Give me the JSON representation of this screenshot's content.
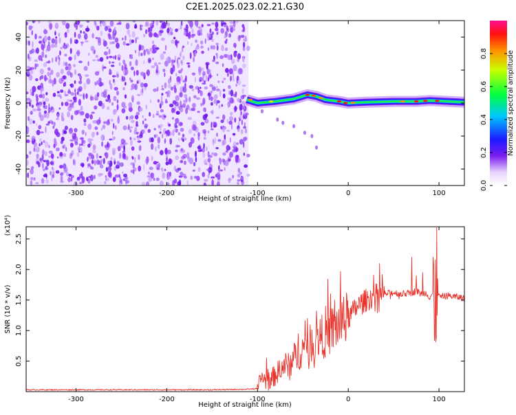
{
  "title": "C2E1.2025.023.02.21.G30",
  "colorbar": {
    "label": "Normalized spectral amplitude",
    "ticks": [
      "0.0",
      "0.2",
      "0.4",
      "0.6",
      "0.8"
    ],
    "range": [
      0,
      1
    ]
  },
  "chart_data": [
    {
      "type": "heatmap",
      "xlabel": "Height of straight line (km)",
      "ylabel": "Frequency (Hz)",
      "xlim": [
        -355,
        128
      ],
      "ylim": [
        -50,
        50
      ],
      "x_ticks": [
        "-300",
        "-200",
        "-100",
        "0",
        "100"
      ],
      "y_ticks": [
        "-40",
        "-20",
        "0",
        "20",
        "40"
      ],
      "regions": [
        {
          "kind": "noise",
          "x_range": [
            -355,
            -110
          ],
          "y_range": [
            -50,
            50
          ],
          "amplitude": 0.1
        },
        {
          "kind": "ridge",
          "x_range": [
            -112,
            128
          ],
          "amplitude_peak": 1.0
        }
      ],
      "ridge_center": [
        [
          -112,
          2
        ],
        [
          -100,
          0
        ],
        [
          -80,
          1
        ],
        [
          -60,
          2.5
        ],
        [
          -45,
          5
        ],
        [
          -35,
          4
        ],
        [
          -25,
          2
        ],
        [
          -10,
          1
        ],
        [
          0,
          0
        ],
        [
          20,
          0.5
        ],
        [
          50,
          1
        ],
        [
          75,
          1
        ],
        [
          90,
          1.5
        ],
        [
          110,
          1
        ],
        [
          128,
          0.5
        ]
      ]
    },
    {
      "type": "line",
      "xlabel": "Height of straight line (km)",
      "ylabel": "SNR (10 * v/v)",
      "y_multiplier": "(x10⁴)",
      "xlim": [
        -355,
        128
      ],
      "ylim": [
        0,
        2.7
      ],
      "x_ticks": [
        "-300",
        "-200",
        "-100",
        "0",
        "100"
      ],
      "y_ticks": [
        "0.5",
        "1.0",
        "1.5",
        "2.0",
        "2.5"
      ],
      "series_color": "#e8322a",
      "x": [
        -355,
        -300,
        -250,
        -200,
        -150,
        -110,
        -100,
        -95,
        -90,
        -85,
        -80,
        -75,
        -70,
        -65,
        -60,
        -55,
        -50,
        -45,
        -40,
        -35,
        -30,
        -25,
        -20,
        -15,
        -10,
        -5,
        0,
        5,
        10,
        20,
        30,
        40,
        50,
        60,
        70,
        75,
        80,
        85,
        90,
        95,
        98,
        100,
        110,
        120,
        128
      ],
      "y": [
        0.03,
        0.03,
        0.03,
        0.03,
        0.03,
        0.04,
        0.05,
        0.25,
        0.15,
        0.2,
        0.28,
        0.35,
        0.45,
        0.4,
        0.55,
        0.6,
        0.7,
        0.75,
        0.8,
        0.85,
        0.9,
        0.92,
        0.98,
        1.05,
        1.1,
        1.15,
        1.2,
        1.3,
        1.4,
        1.5,
        1.58,
        1.6,
        1.62,
        1.6,
        1.62,
        1.65,
        1.6,
        1.62,
        1.55,
        1.65,
        1.6,
        1.55,
        1.57,
        1.55,
        1.53
      ]
    }
  ]
}
